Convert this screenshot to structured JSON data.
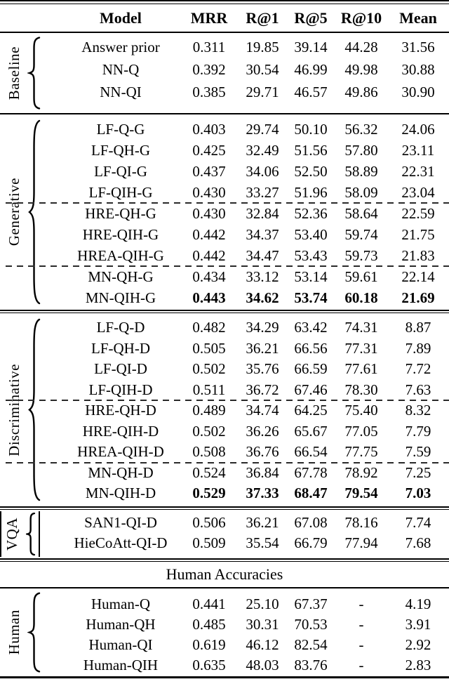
{
  "table": {
    "columns": [
      "Model",
      "MRR",
      "R@1",
      "R@5",
      "R@10",
      "Mean"
    ],
    "banner": "Human Accuracies",
    "groups": [
      {
        "label": "Baseline",
        "rows": [
          {
            "model": "Answer prior",
            "values": [
              "0.311",
              "19.85",
              "39.14",
              "44.28",
              "31.56"
            ]
          },
          {
            "model": "NN-Q",
            "values": [
              "0.392",
              "30.54",
              "46.99",
              "49.98",
              "30.88"
            ]
          },
          {
            "model": "NN-QI",
            "values": [
              "0.385",
              "29.71",
              "46.57",
              "49.86",
              "30.90"
            ]
          }
        ]
      },
      {
        "label": "Generative",
        "dashed_before": [
          4,
          7
        ],
        "rows": [
          {
            "model": "LF-Q-G",
            "values": [
              "0.403",
              "29.74",
              "50.10",
              "56.32",
              "24.06"
            ]
          },
          {
            "model": "LF-QH-G",
            "values": [
              "0.425",
              "32.49",
              "51.56",
              "57.80",
              "23.11"
            ]
          },
          {
            "model": "LF-QI-G",
            "values": [
              "0.437",
              "34.06",
              "52.50",
              "58.89",
              "22.31"
            ]
          },
          {
            "model": "LF-QIH-G",
            "values": [
              "0.430",
              "33.27",
              "51.96",
              "58.09",
              "23.04"
            ]
          },
          {
            "model": "HRE-QH-G",
            "values": [
              "0.430",
              "32.84",
              "52.36",
              "58.64",
              "22.59"
            ]
          },
          {
            "model": "HRE-QIH-G",
            "values": [
              "0.442",
              "34.37",
              "53.40",
              "59.74",
              "21.75"
            ]
          },
          {
            "model": "HREA-QIH-G",
            "values": [
              "0.442",
              "34.47",
              "53.43",
              "59.73",
              "21.83"
            ]
          },
          {
            "model": "MN-QH-G",
            "values": [
              "0.434",
              "33.12",
              "53.14",
              "59.61",
              "22.14"
            ]
          },
          {
            "model": "MN-QIH-G",
            "bold_values": true,
            "values": [
              "0.443",
              "34.62",
              "53.74",
              "60.18",
              "21.69"
            ]
          }
        ]
      },
      {
        "label": "Discriminative",
        "dashed_before": [
          4,
          7
        ],
        "rows": [
          {
            "model": "LF-Q-D",
            "values": [
              "0.482",
              "34.29",
              "63.42",
              "74.31",
              "8.87"
            ]
          },
          {
            "model": "LF-QH-D",
            "values": [
              "0.505",
              "36.21",
              "66.56",
              "77.31",
              "7.89"
            ]
          },
          {
            "model": "LF-QI-D",
            "values": [
              "0.502",
              "35.76",
              "66.59",
              "77.61",
              "7.72"
            ]
          },
          {
            "model": "LF-QIH-D",
            "values": [
              "0.511",
              "36.72",
              "67.46",
              "78.30",
              "7.63"
            ]
          },
          {
            "model": "HRE-QH-D",
            "values": [
              "0.489",
              "34.74",
              "64.25",
              "75.40",
              "8.32"
            ]
          },
          {
            "model": "HRE-QIH-D",
            "values": [
              "0.502",
              "36.26",
              "65.67",
              "77.05",
              "7.79"
            ]
          },
          {
            "model": "HREA-QIH-D",
            "values": [
              "0.508",
              "36.76",
              "66.54",
              "77.75",
              "7.59"
            ]
          },
          {
            "model": "MN-QH-D",
            "values": [
              "0.524",
              "36.84",
              "67.78",
              "78.92",
              "7.25"
            ]
          },
          {
            "model": "MN-QIH-D",
            "bold_values": true,
            "values": [
              "0.529",
              "37.33",
              "68.47",
              "79.54",
              "7.03"
            ]
          }
        ]
      },
      {
        "label": "VQA",
        "rows": [
          {
            "model": "SAN1-QI-D",
            "values": [
              "0.506",
              "36.21",
              "67.08",
              "78.16",
              "7.74"
            ]
          },
          {
            "model": "HieCoAtt-QI-D",
            "values": [
              "0.509",
              "35.54",
              "66.79",
              "77.94",
              "7.68"
            ]
          }
        ]
      },
      {
        "label": "Human",
        "banner_before": true,
        "rows": [
          {
            "model": "Human-Q",
            "values": [
              "0.441",
              "25.10",
              "67.37",
              "-",
              "4.19"
            ]
          },
          {
            "model": "Human-QH",
            "values": [
              "0.485",
              "30.31",
              "70.53",
              "-",
              "3.91"
            ]
          },
          {
            "model": "Human-QI",
            "values": [
              "0.619",
              "46.12",
              "82.54",
              "-",
              "2.92"
            ]
          },
          {
            "model": "Human-QIH",
            "values": [
              "0.635",
              "48.03",
              "83.76",
              "-",
              "2.83"
            ]
          }
        ]
      }
    ]
  }
}
